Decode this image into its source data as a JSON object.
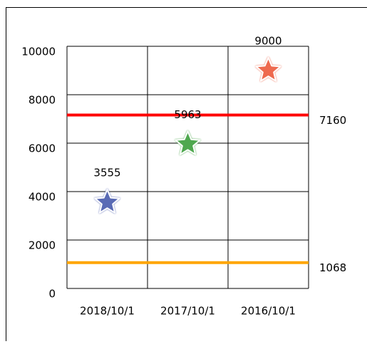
{
  "chart_data": {
    "type": "scatter",
    "categories": [
      "2018/10/1",
      "2017/10/1",
      "2016/10/1"
    ],
    "values": [
      3555,
      5963,
      9000
    ],
    "colors": [
      "#5a6bb5",
      "#4fa84f",
      "#ee6a4f"
    ],
    "ylim": [
      0,
      10000
    ],
    "yticks": [
      0,
      2000,
      4000,
      6000,
      8000,
      10000
    ],
    "grid": true,
    "reference_lines": [
      {
        "value": 7160,
        "color": "#ff0000"
      },
      {
        "value": 1068,
        "color": "#ffa500"
      }
    ]
  }
}
